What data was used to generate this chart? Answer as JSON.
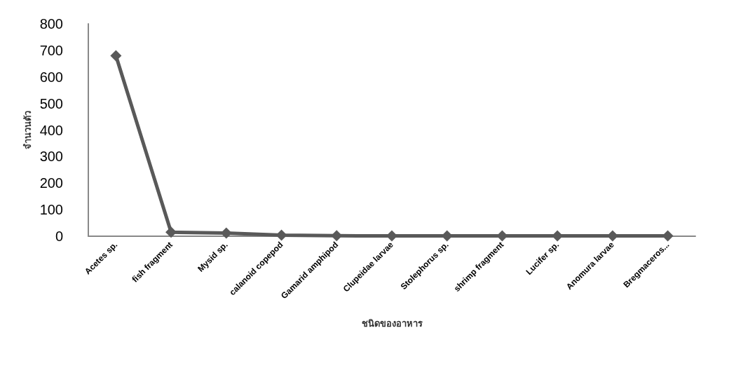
{
  "chart_data": {
    "type": "line",
    "xlabel": "ชนิดของอาหาร",
    "ylabel": "จำนวนตัว",
    "categories": [
      "Acetes sp.",
      "fish fragment",
      "Mysid sp.",
      "calanoid copepod",
      "Gamarid amphipod",
      "Clupeidae larvae",
      "Stolephorus sp.",
      "shrimp fragment",
      "Lucifer sp.",
      "Anomura larvae",
      "Bregmaceros..."
    ],
    "series": [
      {
        "color": "#595959",
        "values": [
          680,
          15,
          12,
          4,
          2,
          1,
          1,
          1,
          1,
          1,
          1
        ]
      }
    ],
    "ylim": [
      0,
      800
    ],
    "yticks": [
      0,
      100,
      200,
      300,
      400,
      500,
      600,
      700,
      800
    ],
    "grid": false,
    "marker": "diamond",
    "line_style": "solid"
  }
}
